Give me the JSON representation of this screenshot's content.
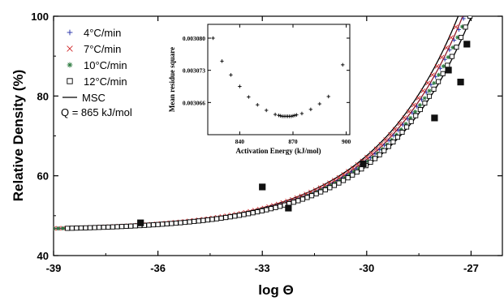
{
  "chart_data": [
    {
      "type": "scatter",
      "role": "main",
      "xlabel": "log Θ",
      "ylabel": "Relative Density (%)",
      "xlim": [
        -39.0,
        -26.1
      ],
      "ylim": [
        40,
        100
      ],
      "xticks": [
        -39,
        -36,
        -33,
        -30,
        -27
      ],
      "yticks": [
        40,
        60,
        80,
        100
      ],
      "grid": false,
      "legend_position": "top-left",
      "legend_note": "Q = 865 kJ/mol",
      "curve_model": {
        "base": 46.3,
        "amplitude": 17.45,
        "rate": 0.4,
        "x0": -30
      },
      "series": [
        {
          "name": "4°C/min",
          "marker": "plus",
          "color": "#1f2aa6",
          "x_start": -39.0,
          "x_end": -26.95,
          "shift": 0.0
        },
        {
          "name": "7°C/min",
          "marker": "cross",
          "color": "#d0282a",
          "x_start": -39.0,
          "x_end": -26.9,
          "shift": 0.12
        },
        {
          "name": "10°C/min",
          "marker": "asterisk",
          "color": "#2c7a3f",
          "x_start": -39.0,
          "x_end": -26.85,
          "shift": -0.06
        },
        {
          "name": "12°C/min",
          "marker": "open-square",
          "color": "#000000",
          "x_start": -38.6,
          "x_end": -26.9,
          "shift": -0.16
        },
        {
          "name": "MSC",
          "marker": "line",
          "color": "#000000"
        }
      ],
      "msc_curves": [
        {
          "shift": 0.18,
          "color": "#000000"
        },
        {
          "shift": -0.2,
          "color": "#000000"
        },
        {
          "shift": 0.05,
          "color": "#8b1a2a"
        }
      ],
      "filled_squares": [
        {
          "x": -36.5,
          "y": 48.2
        },
        {
          "x": -33.0,
          "y": 57.2
        },
        {
          "x": -32.25,
          "y": 51.9
        },
        {
          "x": -30.1,
          "y": 63.0
        },
        {
          "x": -28.05,
          "y": 74.5
        },
        {
          "x": -27.65,
          "y": 86.5
        },
        {
          "x": -27.3,
          "y": 83.5
        },
        {
          "x": -27.12,
          "y": 93.0
        }
      ]
    },
    {
      "type": "scatter",
      "role": "inset",
      "xlabel": "Activation Energy (kJ/mol)",
      "ylabel": "Mean residue square",
      "xlim": [
        822,
        902
      ],
      "ylim": [
        0.003059,
        0.003083
      ],
      "xticks": [
        840,
        870,
        900
      ],
      "yticks": [
        "0.003066",
        "0.003073",
        "0.003080"
      ],
      "ytick_values": [
        0.003066,
        0.003073,
        0.00308
      ],
      "marker": "plus",
      "points": [
        {
          "x": 825,
          "y": 0.00308
        },
        {
          "x": 830,
          "y": 0.003075
        },
        {
          "x": 835,
          "y": 0.003072
        },
        {
          "x": 840,
          "y": 0.0030695
        },
        {
          "x": 845,
          "y": 0.0030672
        },
        {
          "x": 850,
          "y": 0.0030655
        },
        {
          "x": 855,
          "y": 0.0030643
        },
        {
          "x": 860,
          "y": 0.0030634
        },
        {
          "x": 862,
          "y": 0.0030632
        },
        {
          "x": 863,
          "y": 0.0030631
        },
        {
          "x": 864,
          "y": 0.003063
        },
        {
          "x": 865,
          "y": 0.003063
        },
        {
          "x": 866,
          "y": 0.003063
        },
        {
          "x": 867,
          "y": 0.003063
        },
        {
          "x": 868,
          "y": 0.003063
        },
        {
          "x": 869,
          "y": 0.003063
        },
        {
          "x": 870,
          "y": 0.0030631
        },
        {
          "x": 871,
          "y": 0.0030632
        },
        {
          "x": 872,
          "y": 0.0030633
        },
        {
          "x": 875,
          "y": 0.0030636
        },
        {
          "x": 880,
          "y": 0.0030645
        },
        {
          "x": 885,
          "y": 0.0030657
        },
        {
          "x": 890,
          "y": 0.0030673
        },
        {
          "x": 898,
          "y": 0.0030742
        }
      ]
    }
  ]
}
